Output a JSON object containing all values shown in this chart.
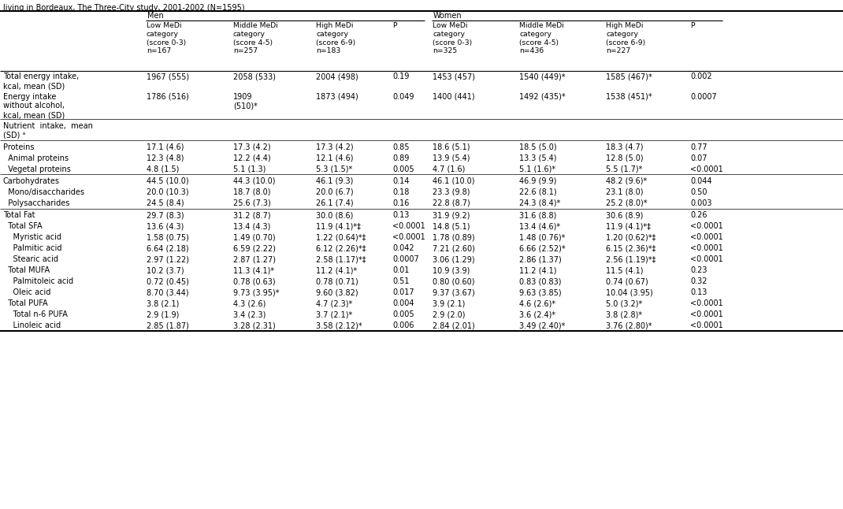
{
  "title_line": "living in Bordeaux, The Three-City study, 2001-2002 (N=1595)",
  "col_headers": {
    "men_label": "Men",
    "women_label": "Women",
    "col1": "Low MeDi\ncategory\n(score 0-3)\nn=167",
    "col2": "Middle MeDi\ncategory\n(score 4-5)\nn=257",
    "col3": "High MeDi\ncategory\n(score 6-9)\nn=183",
    "col4": "P",
    "col5": "Low MeDi\ncategory\n(score 0-3)\nn=325",
    "col6": "Middle MeDi\ncategory\n(score 4-5)\nn=436",
    "col7": "High MeDi\ncategory\n(score 6-9)\nn=227",
    "col8": "P"
  },
  "rows": [
    {
      "label": "Total energy intake,\nkcal, mean (SD)",
      "indent": 0,
      "separator_before": true,
      "header_only": false,
      "c1": "1967 (555)",
      "c2": "2058 (533)",
      "c3": "2004 (498)",
      "p1": "0.19",
      "c5": "1453 (457)",
      "c6": "1540 (449)*",
      "c7": "1585 (467)*",
      "p2": "0.002"
    },
    {
      "label": "Energy intake\nwithout alcohol,\nkcal, mean (SD)",
      "indent": 0,
      "separator_before": false,
      "header_only": false,
      "c1": "1786 (516)",
      "c2": "1909\n(510)*",
      "c3": "1873 (494)",
      "p1": "0.049",
      "c5": "1400 (441)",
      "c6": "1492 (435)*",
      "c7": "1538 (451)*",
      "p2": "0.0007"
    },
    {
      "label": "Nutrient  intake,  mean\n(SD) ᵃ",
      "indent": 0,
      "separator_before": true,
      "header_only": true,
      "c1": "",
      "c2": "",
      "c3": "",
      "p1": "",
      "c5": "",
      "c6": "",
      "c7": "",
      "p2": ""
    },
    {
      "label": "Proteins",
      "indent": 0,
      "separator_before": true,
      "header_only": false,
      "c1": "17.1 (4.6)",
      "c2": "17.3 (4.2)",
      "c3": "17.3 (4.2)",
      "p1": "0.85",
      "c5": "18.6 (5.1)",
      "c6": "18.5 (5.0)",
      "c7": "18.3 (4.7)",
      "p2": "0.77"
    },
    {
      "label": "  Animal proteins",
      "indent": 1,
      "separator_before": false,
      "header_only": false,
      "c1": "12.3 (4.8)",
      "c2": "12.2 (4.4)",
      "c3": "12.1 (4.6)",
      "p1": "0.89",
      "c5": "13.9 (5.4)",
      "c6": "13.3 (5.4)",
      "c7": "12.8 (5.0)",
      "p2": "0.07"
    },
    {
      "label": "  Vegetal proteins",
      "indent": 1,
      "separator_before": false,
      "header_only": false,
      "c1": "4.8 (1.5)",
      "c2": "5.1 (1.3)",
      "c3": "5.3 (1.5)*",
      "p1": "0.005",
      "c5": "4.7 (1.6)",
      "c6": "5.1 (1.6)*",
      "c7": "5.5 (1.7)*",
      "p2": "<0.0001"
    },
    {
      "label": "Carbohydrates",
      "indent": 0,
      "separator_before": true,
      "header_only": false,
      "c1": "44.5 (10.0)",
      "c2": "44.3 (10.0)",
      "c3": "46.1 (9.3)",
      "p1": "0.14",
      "c5": "46.1 (10.0)",
      "c6": "46.9 (9.9)",
      "c7": "48.2 (9.6)*",
      "p2": "0.044"
    },
    {
      "label": "  Mono/disaccharides",
      "indent": 1,
      "separator_before": false,
      "header_only": false,
      "c1": "20.0 (10.3)",
      "c2": "18.7 (8.0)",
      "c3": "20.0 (6.7)",
      "p1": "0.18",
      "c5": "23.3 (9.8)",
      "c6": "22.6 (8.1)",
      "c7": "23.1 (8.0)",
      "p2": "0.50"
    },
    {
      "label": "  Polysaccharides",
      "indent": 1,
      "separator_before": false,
      "header_only": false,
      "c1": "24.5 (8.4)",
      "c2": "25.6 (7.3)",
      "c3": "26.1 (7.4)",
      "p1": "0.16",
      "c5": "22.8 (8.7)",
      "c6": "24.3 (8.4)*",
      "c7": "25.2 (8.0)*",
      "p2": "0.003"
    },
    {
      "label": "Total Fat",
      "indent": 0,
      "separator_before": true,
      "header_only": false,
      "c1": "29.7 (8.3)",
      "c2": "31.2 (8.7)",
      "c3": "30.0 (8.6)",
      "p1": "0.13",
      "c5": "31.9 (9.2)",
      "c6": "31.6 (8.8)",
      "c7": "30.6 (8.9)",
      "p2": "0.26"
    },
    {
      "label": "  Total SFA",
      "indent": 1,
      "separator_before": false,
      "header_only": false,
      "c1": "13.6 (4.3)",
      "c2": "13.4 (4.3)",
      "c3": "11.9 (4.1)*‡",
      "p1": "<0.0001",
      "c5": "14.8 (5.1)",
      "c6": "13.4 (4.6)*",
      "c7": "11.9 (4.1)*‡",
      "p2": "<0.0001"
    },
    {
      "label": "    Myristic acid",
      "indent": 2,
      "separator_before": false,
      "header_only": false,
      "c1": "1.58 (0.75)",
      "c2": "1.49 (0.70)",
      "c3": "1.22 (0.64)*‡",
      "p1": "<0.0001",
      "c5": "1.78 (0.89)",
      "c6": "1.48 (0.76)*",
      "c7": "1.20 (0.62)*‡",
      "p2": "<0.0001"
    },
    {
      "label": "    Palmitic acid",
      "indent": 2,
      "separator_before": false,
      "header_only": false,
      "c1": "6.64 (2.18)",
      "c2": "6.59 (2.22)",
      "c3": "6.12 (2.26)*‡",
      "p1": "0.042",
      "c5": "7.21 (2.60)",
      "c6": "6.66 (2.52)*",
      "c7": "6.15 (2.36)*‡",
      "p2": "<0.0001"
    },
    {
      "label": "    Stearic acid",
      "indent": 2,
      "separator_before": false,
      "header_only": false,
      "c1": "2.97 (1.22)",
      "c2": "2.87 (1.27)",
      "c3": "2.58 (1.17)*‡",
      "p1": "0.0007",
      "c5": "3.06 (1.29)",
      "c6": "2.86 (1.37)",
      "c7": "2.56 (1.19)*‡",
      "p2": "<0.0001"
    },
    {
      "label": "  Total MUFA",
      "indent": 1,
      "separator_before": false,
      "header_only": false,
      "c1": "10.2 (3.7)",
      "c2": "11.3 (4.1)*",
      "c3": "11.2 (4.1)*",
      "p1": "0.01",
      "c5": "10.9 (3.9)",
      "c6": "11.2 (4.1)",
      "c7": "11.5 (4.1)",
      "p2": "0.23"
    },
    {
      "label": "    Palmitoleic acid",
      "indent": 2,
      "separator_before": false,
      "header_only": false,
      "c1": "0.72 (0.45)",
      "c2": "0.78 (0.63)",
      "c3": "0.78 (0.71)",
      "p1": "0.51",
      "c5": "0.80 (0.60)",
      "c6": "0.83 (0.83)",
      "c7": "0.74 (0.67)",
      "p2": "0.32"
    },
    {
      "label": "    Oleic acid",
      "indent": 2,
      "separator_before": false,
      "header_only": false,
      "c1": "8.70 (3.44)",
      "c2": "9.73 (3.95)*",
      "c3": "9.60 (3.82)",
      "p1": "0.017",
      "c5": "9.37 (3.67)",
      "c6": "9.63 (3.85)",
      "c7": "10.04 (3.95)",
      "p2": "0.13"
    },
    {
      "label": "  Total PUFA",
      "indent": 1,
      "separator_before": false,
      "header_only": false,
      "c1": "3.8 (2.1)",
      "c2": "4.3 (2.6)",
      "c3": "4.7 (2.3)*",
      "p1": "0.004",
      "c5": "3.9 (2.1)",
      "c6": "4.6 (2.6)*",
      "c7": "5.0 (3.2)*",
      "p2": "<0.0001"
    },
    {
      "label": "    Total n-6 PUFA",
      "indent": 2,
      "separator_before": false,
      "header_only": false,
      "c1": "2.9 (1.9)",
      "c2": "3.4 (2.3)",
      "c3": "3.7 (2.1)*",
      "p1": "0.005",
      "c5": "2.9 (2.0)",
      "c6": "3.6 (2.4)*",
      "c7": "3.8 (2.8)*",
      "p2": "<0.0001"
    },
    {
      "label": "    Linoleic acid",
      "indent": 2,
      "separator_before": false,
      "header_only": false,
      "c1": "2.85 (1.87)",
      "c2": "3.28 (2.31)",
      "c3": "3.58 (2.12)*",
      "p1": "0.006",
      "c5": "2.84 (2.01)",
      "c6": "3.49 (2.40)*",
      "c7": "3.76 (2.80)*",
      "p2": "<0.0001"
    }
  ],
  "bg_color": "#ffffff",
  "text_color": "#000000",
  "font_size": 7.0
}
